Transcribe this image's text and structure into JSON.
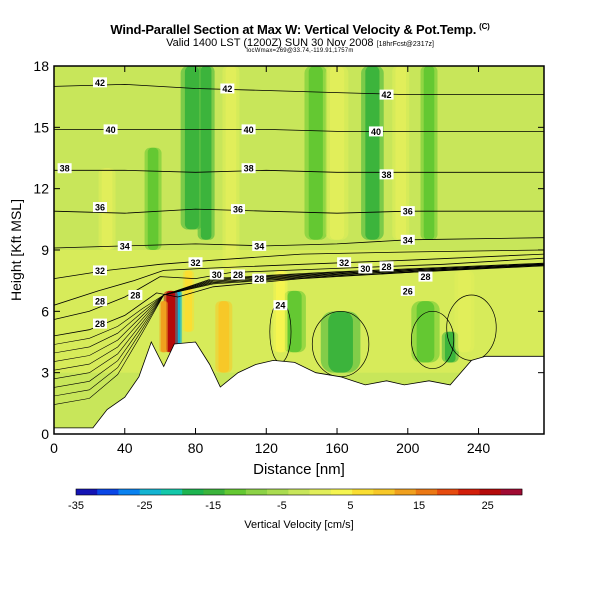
{
  "chart_data": {
    "type": "heatmap",
    "title": "Wind-Parallel Section at Max W: Vertical Velocity & Pot.Temp.",
    "title_unit": "(C)",
    "subtitle": "Valid 1400 LST (1200Z) SUN 30 Nov 2008",
    "subtitle_note": "[18hrFcst@2317z]",
    "subsubtitle": "locWmax=269@33.74,-119.91,1757m",
    "xlabel": "Distance [nm]",
    "ylabel": "Height [Kft MSL]",
    "xlim": [
      0,
      277
    ],
    "ylim": [
      0,
      18
    ],
    "x_ticks": [
      0,
      40,
      80,
      120,
      160,
      200,
      240
    ],
    "y_ticks": [
      0,
      3,
      6,
      9,
      12,
      15,
      18
    ],
    "colorbar": {
      "label": "Vertical Velocity [cm/s]",
      "range": [
        -35,
        30
      ],
      "tick_labels": [
        -35,
        -25,
        -15,
        -5,
        5,
        15,
        25
      ],
      "colors": [
        "#1414b4",
        "#0a46e6",
        "#0a82f0",
        "#14b4d2",
        "#14c8aa",
        "#1eb450",
        "#3cb43c",
        "#64c832",
        "#8cd246",
        "#aadc50",
        "#c8e65a",
        "#e1ee5a",
        "#f5f550",
        "#fade32",
        "#f7c828",
        "#f0a01e",
        "#eb7814",
        "#e64b0f",
        "#d21e0a",
        "#b40a0a",
        "#a00a32"
      ]
    },
    "terrain_profile": [
      [
        0,
        0.3
      ],
      [
        22,
        0.3
      ],
      [
        30,
        1.2
      ],
      [
        40,
        1.8
      ],
      [
        48,
        2.8
      ],
      [
        55,
        4.5
      ],
      [
        62,
        3.3
      ],
      [
        68,
        4.4
      ],
      [
        80,
        4.5
      ],
      [
        88,
        3.4
      ],
      [
        94,
        2.3
      ],
      [
        104,
        3.0
      ],
      [
        114,
        3.4
      ],
      [
        124,
        3.6
      ],
      [
        136,
        3.5
      ],
      [
        148,
        3.0
      ],
      [
        162,
        2.8
      ],
      [
        176,
        2.4
      ],
      [
        188,
        2.6
      ],
      [
        198,
        2.4
      ],
      [
        212,
        2.6
      ],
      [
        224,
        2.4
      ],
      [
        236,
        3.6
      ],
      [
        244,
        3.8
      ],
      [
        277,
        3.8
      ]
    ],
    "isentropes": [
      {
        "value": 26,
        "points": [
          [
            0,
            4.8
          ],
          [
            20,
            5.1
          ],
          [
            40,
            5.8
          ],
          [
            58,
            6.9
          ],
          [
            70,
            6.7
          ],
          [
            90,
            7.2
          ],
          [
            140,
            7.6
          ],
          [
            200,
            7.9
          ],
          [
            277,
            8.3
          ]
        ]
      },
      {
        "value": 28,
        "points": [
          [
            0,
            5.6
          ],
          [
            20,
            6.0
          ],
          [
            40,
            6.7
          ],
          [
            60,
            7.7
          ],
          [
            80,
            7.6
          ],
          [
            100,
            7.9
          ],
          [
            160,
            8.1
          ],
          [
            220,
            8.3
          ],
          [
            277,
            8.6
          ]
        ]
      },
      {
        "value": 30,
        "points": [
          [
            0,
            6.3
          ],
          [
            25,
            7.0
          ],
          [
            45,
            7.5
          ],
          [
            62,
            8.0
          ],
          [
            85,
            8.1
          ],
          [
            140,
            8.3
          ],
          [
            200,
            8.5
          ],
          [
            277,
            8.8
          ]
        ]
      },
      {
        "value": 32,
        "points": [
          [
            0,
            7.6
          ],
          [
            30,
            8.0
          ],
          [
            60,
            8.3
          ],
          [
            90,
            8.5
          ],
          [
            140,
            8.8
          ],
          [
            200,
            8.9
          ],
          [
            277,
            9.0
          ]
        ]
      },
      {
        "value": 34,
        "points": [
          [
            0,
            9.1
          ],
          [
            40,
            9.2
          ],
          [
            80,
            9.3
          ],
          [
            120,
            9.2
          ],
          [
            160,
            9.3
          ],
          [
            200,
            9.5
          ],
          [
            277,
            9.6
          ]
        ]
      },
      {
        "value": 36,
        "points": [
          [
            0,
            10.9
          ],
          [
            40,
            10.8
          ],
          [
            80,
            11.0
          ],
          [
            120,
            10.9
          ],
          [
            160,
            10.8
          ],
          [
            200,
            10.9
          ],
          [
            277,
            10.9
          ]
        ]
      },
      {
        "value": 38,
        "points": [
          [
            0,
            12.9
          ],
          [
            40,
            12.9
          ],
          [
            80,
            12.8
          ],
          [
            120,
            12.9
          ],
          [
            160,
            12.8
          ],
          [
            200,
            12.8
          ],
          [
            277,
            12.8
          ]
        ]
      },
      {
        "value": 40,
        "points": [
          [
            0,
            14.9
          ],
          [
            40,
            14.9
          ],
          [
            80,
            14.9
          ],
          [
            120,
            14.9
          ],
          [
            160,
            14.8
          ],
          [
            200,
            14.8
          ],
          [
            277,
            14.8
          ]
        ]
      },
      {
        "value": 42,
        "points": [
          [
            0,
            17.0
          ],
          [
            40,
            17.1
          ],
          [
            80,
            16.9
          ],
          [
            120,
            16.8
          ],
          [
            160,
            16.7
          ],
          [
            200,
            16.6
          ],
          [
            277,
            16.6
          ]
        ]
      }
    ],
    "contour_labels": [
      {
        "text": "42",
        "x": 26,
        "y": 17.2
      },
      {
        "text": "42",
        "x": 98,
        "y": 16.9
      },
      {
        "text": "42",
        "x": 188,
        "y": 16.6
      },
      {
        "text": "40",
        "x": 32,
        "y": 14.9
      },
      {
        "text": "40",
        "x": 110,
        "y": 14.9
      },
      {
        "text": "40",
        "x": 182,
        "y": 14.8
      },
      {
        "text": "38",
        "x": 6,
        "y": 13.0
      },
      {
        "text": "38",
        "x": 110,
        "y": 13.0
      },
      {
        "text": "38",
        "x": 188,
        "y": 12.7
      },
      {
        "text": "36",
        "x": 26,
        "y": 11.1
      },
      {
        "text": "36",
        "x": 104,
        "y": 11.0
      },
      {
        "text": "36",
        "x": 200,
        "y": 10.9
      },
      {
        "text": "34",
        "x": 40,
        "y": 9.2
      },
      {
        "text": "34",
        "x": 116,
        "y": 9.2
      },
      {
        "text": "34",
        "x": 200,
        "y": 9.5
      },
      {
        "text": "32",
        "x": 26,
        "y": 8.0
      },
      {
        "text": "32",
        "x": 80,
        "y": 8.4
      },
      {
        "text": "32",
        "x": 164,
        "y": 8.4
      },
      {
        "text": "30",
        "x": 92,
        "y": 7.8
      },
      {
        "text": "30",
        "x": 176,
        "y": 8.1
      },
      {
        "text": "28",
        "x": 104,
        "y": 7.8
      },
      {
        "text": "28",
        "x": 188,
        "y": 8.2
      },
      {
        "text": "28",
        "x": 116,
        "y": 7.6
      },
      {
        "text": "28",
        "x": 210,
        "y": 7.7
      },
      {
        "text": "28",
        "x": 26,
        "y": 6.5
      },
      {
        "text": "28",
        "x": 26,
        "y": 5.4
      },
      {
        "text": "28",
        "x": 46,
        "y": 6.8
      },
      {
        "text": "26",
        "x": 200,
        "y": 7.0
      },
      {
        "text": "24",
        "x": 128,
        "y": 6.3
      }
    ],
    "updraft_bands": [
      {
        "x": 66,
        "half_width": 2.5,
        "y0": 4.0,
        "y1": 7.0,
        "level": 19
      },
      {
        "x": 62,
        "half_width": 1.5,
        "y0": 4.0,
        "y1": 6.5,
        "level": 15
      },
      {
        "x": 96,
        "half_width": 3.0,
        "y0": 3.0,
        "y1": 6.5,
        "level": 14
      },
      {
        "x": 76,
        "half_width": 2.0,
        "y0": 5.0,
        "y1": 8.0,
        "level": 13
      },
      {
        "x": 100,
        "half_width": 3.0,
        "y0": 8.0,
        "y1": 18.0,
        "level": 11
      },
      {
        "x": 128,
        "half_width": 2.5,
        "y0": 4.0,
        "y1": 8.0,
        "level": 12
      },
      {
        "x": 160,
        "half_width": 4.0,
        "y0": 9.5,
        "y1": 18.0,
        "level": 11
      },
      {
        "x": 196,
        "half_width": 3.0,
        "y0": 9.5,
        "y1": 18.0,
        "level": 11
      },
      {
        "x": 232,
        "half_width": 3.5,
        "y0": 4.0,
        "y1": 8.0,
        "level": 11
      },
      {
        "x": 30,
        "half_width": 3.0,
        "y0": 9.0,
        "y1": 13.0,
        "level": 11
      }
    ],
    "downdraft_bands": [
      {
        "x": 70,
        "half_width": 1.5,
        "y0": 4.0,
        "y1": 7.0,
        "level": 3
      },
      {
        "x": 78,
        "half_width": 4.0,
        "y0": 10.0,
        "y1": 18.0,
        "level": 6
      },
      {
        "x": 86,
        "half_width": 3.0,
        "y0": 9.5,
        "y1": 18.0,
        "level": 6
      },
      {
        "x": 56,
        "half_width": 3.0,
        "y0": 9.0,
        "y1": 14.0,
        "level": 7
      },
      {
        "x": 148,
        "half_width": 4.0,
        "y0": 9.5,
        "y1": 18.0,
        "level": 7
      },
      {
        "x": 180,
        "half_width": 4.0,
        "y0": 9.5,
        "y1": 18.0,
        "level": 6
      },
      {
        "x": 212,
        "half_width": 3.0,
        "y0": 9.5,
        "y1": 18.0,
        "level": 7
      },
      {
        "x": 162,
        "half_width": 7.0,
        "y0": 3.0,
        "y1": 6.0,
        "level": 6
      },
      {
        "x": 210,
        "half_width": 5.0,
        "y0": 3.5,
        "y1": 6.5,
        "level": 7
      },
      {
        "x": 224,
        "half_width": 3.0,
        "y0": 3.5,
        "y1": 5.0,
        "level": 6
      },
      {
        "x": 136,
        "half_width": 4.0,
        "y0": 4.0,
        "y1": 7.0,
        "level": 7
      }
    ]
  }
}
